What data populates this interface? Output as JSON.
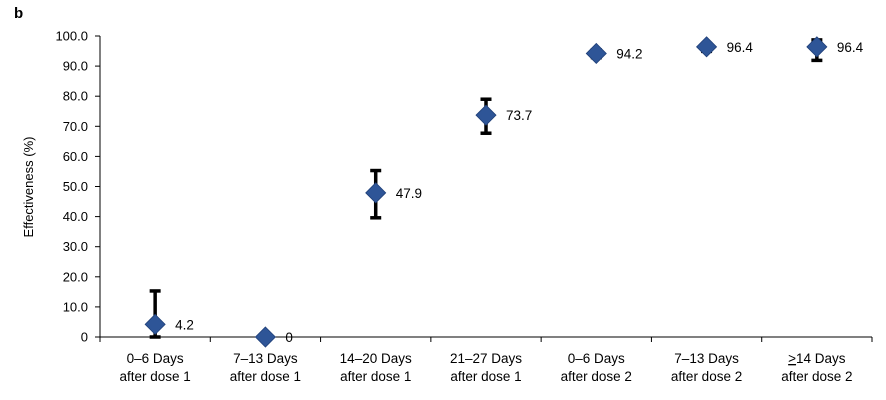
{
  "panel_label": "b",
  "chart_data": {
    "type": "scatter",
    "title": "",
    "xlabel": "",
    "ylabel": "Effectiveness (%)",
    "ylim": [
      0,
      100
    ],
    "yticks": [
      "0",
      "10.0",
      "20.0",
      "30.0",
      "40.0",
      "50.0",
      "60.0",
      "70.0",
      "80.0",
      "90.0",
      "100.0"
    ],
    "categories": [
      [
        "0–6 Days",
        "after dose 1"
      ],
      [
        "7–13 Days",
        "after dose 1"
      ],
      [
        "14–20 Days",
        "after dose 1"
      ],
      [
        "21–27 Days",
        "after dose 1"
      ],
      [
        "0–6 Days",
        "after dose 2"
      ],
      [
        "7–13 Days",
        "after dose 2"
      ],
      [
        "≥14 Days",
        "after dose 2"
      ]
    ],
    "values": [
      4.2,
      0,
      47.9,
      73.7,
      94.2,
      96.4,
      96.4
    ],
    "value_labels": [
      "4.2",
      "0",
      "47.9",
      "73.7",
      "94.2",
      "96.4",
      "96.4"
    ],
    "error_low": [
      0,
      null,
      39.6,
      67.7,
      92.8,
      94.9,
      91.9
    ],
    "error_high": [
      15.3,
      null,
      55.3,
      79.0,
      95.4,
      97.5,
      98.7
    ],
    "marker": "diamond",
    "marker_color": "#2e5597",
    "errorbar_color": "#000000",
    "grid": false
  }
}
